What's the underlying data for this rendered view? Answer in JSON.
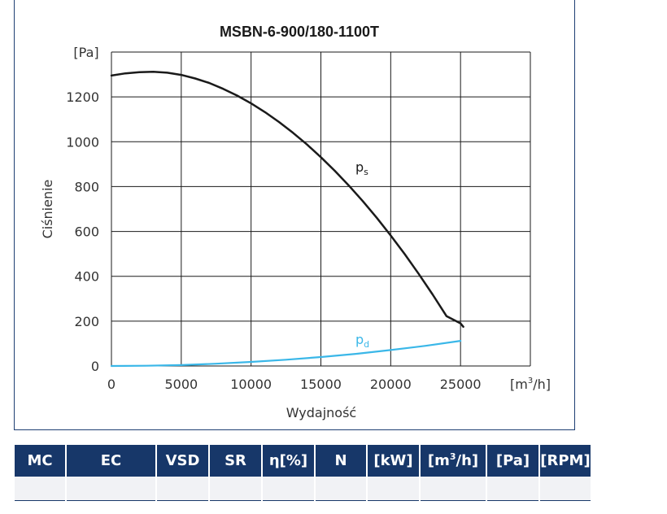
{
  "chart_data": {
    "type": "line",
    "title": "MSBN-6-900/180-1100T",
    "ylabel": "Ciśnienie",
    "xlabel": "Wydajność",
    "y_unit": "[Pa]",
    "x_unit_prefix": "[m",
    "x_unit_sup": "3",
    "x_unit_suffix": "/h]",
    "xlim": [
      0,
      30000
    ],
    "ylim": [
      0,
      1400
    ],
    "x_ticks": [
      0,
      5000,
      10000,
      15000,
      20000,
      25000
    ],
    "y_ticks": [
      0,
      200,
      400,
      600,
      800,
      1000,
      1200
    ],
    "grid": true,
    "series": [
      {
        "name": "p",
        "sub": "s",
        "color": "#1a1a1a",
        "x": [
          0,
          1000,
          2000,
          3000,
          4000,
          5000,
          6000,
          7000,
          8000,
          9000,
          10000,
          11000,
          12000,
          13000,
          14000,
          15000,
          16000,
          17000,
          18000,
          19000,
          20000,
          21000,
          22000,
          23000,
          24000,
          25000,
          25200
        ],
        "y": [
          1295,
          1305,
          1310,
          1312,
          1308,
          1298,
          1282,
          1262,
          1236,
          1206,
          1171,
          1132,
          1088,
          1040,
          988,
          931,
          870,
          805,
          735,
          661,
          582,
          499,
          411,
          319,
          222,
          190,
          175
        ]
      },
      {
        "name": "p",
        "sub": "d",
        "color": "#3ab7e8",
        "x": [
          0,
          2500,
          5000,
          7500,
          10000,
          12500,
          15000,
          17500,
          20000,
          22500,
          25000
        ],
        "y": [
          0,
          1,
          4,
          10,
          18,
          28,
          40,
          54,
          71,
          90,
          112
        ]
      }
    ]
  },
  "table": {
    "headers": [
      {
        "text": "MC"
      },
      {
        "text": "EC"
      },
      {
        "text": "VSD"
      },
      {
        "text": "SR"
      },
      {
        "text": "η[%]"
      },
      {
        "text": "N"
      },
      {
        "text": "[kW]"
      },
      {
        "text": "[m",
        "sup": "3",
        "after": "/h]"
      },
      {
        "text": "[Pa]"
      },
      {
        "text": "[RPM]"
      }
    ],
    "rows": [
      [
        "",
        "",
        "",
        "",
        "",
        "",
        "",
        "",
        "",
        ""
      ]
    ]
  }
}
